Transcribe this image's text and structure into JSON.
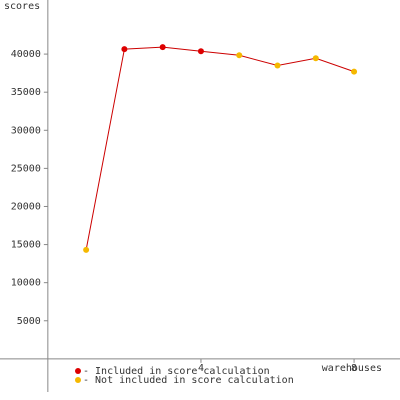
{
  "chart_data": {
    "type": "line",
    "y_label": "scores",
    "x_label": "warehouses",
    "x": [
      1,
      2,
      3,
      4,
      5,
      6,
      7,
      8
    ],
    "values": [
      14300,
      40650,
      40920,
      40380,
      39850,
      38500,
      39450,
      37700
    ],
    "included": [
      false,
      true,
      true,
      true,
      false,
      false,
      false,
      false
    ],
    "line_color": "#cc0000",
    "legend": [
      {
        "label": "- Included in score calculation",
        "color": "#dd0000"
      },
      {
        "label": "- Not included in score calculation",
        "color": "#f5b800"
      }
    ],
    "xlim": [
      -1.25,
      9.2
    ],
    "ylim": [
      -5400,
      47100
    ],
    "xticks": [
      4,
      8
    ],
    "yticks": [
      5000,
      10000,
      15000,
      20000,
      25000,
      30000,
      35000,
      40000
    ]
  }
}
